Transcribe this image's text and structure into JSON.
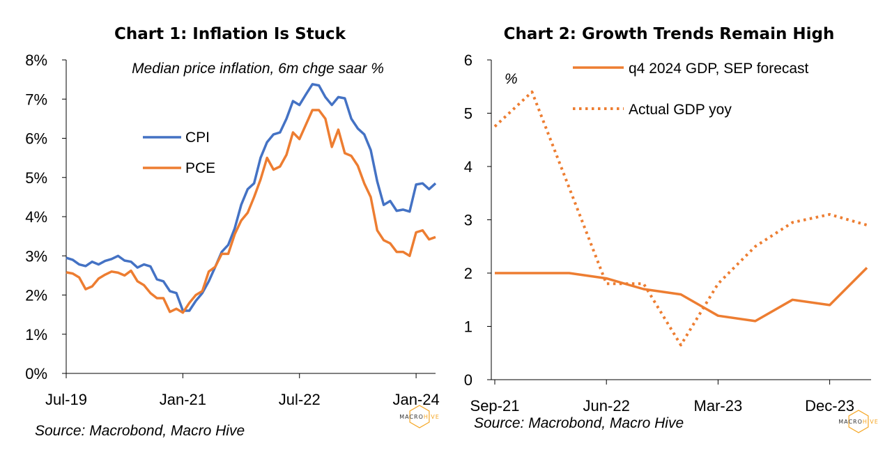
{
  "colors": {
    "cpi": "#4472C4",
    "orange": "#ED7D31",
    "axis": "#000000",
    "logo_dark": "#333333",
    "logo_accent": "#F5A623"
  },
  "logo": {
    "part1": "MACRO",
    "part2": "HIVE"
  },
  "chart_data": [
    {
      "type": "line",
      "title": "Chart 1: Inflation Is Stuck",
      "subtitle": "Median price inflation, 6m chge saar %",
      "source": "Source: Macrobond, Macro Hive",
      "x_tick_labels": [
        "Jul-19",
        "Jan-21",
        "Jul-22",
        "Jan-24"
      ],
      "x_tick_dates": [
        "2019-07",
        "2021-01",
        "2022-07",
        "2024-01"
      ],
      "y_tick_labels": [
        "0%",
        "1%",
        "2%",
        "3%",
        "4%",
        "5%",
        "6%",
        "7%",
        "8%"
      ],
      "ylim": [
        0,
        8
      ],
      "grid": false,
      "legend_position": "left, mid-height",
      "x": [
        "2019-07",
        "2019-08",
        "2019-09",
        "2019-10",
        "2019-11",
        "2019-12",
        "2020-01",
        "2020-02",
        "2020-03",
        "2020-04",
        "2020-05",
        "2020-06",
        "2020-07",
        "2020-08",
        "2020-09",
        "2020-10",
        "2020-11",
        "2020-12",
        "2021-01",
        "2021-02",
        "2021-03",
        "2021-04",
        "2021-05",
        "2021-06",
        "2021-07",
        "2021-08",
        "2021-09",
        "2021-10",
        "2021-11",
        "2021-12",
        "2022-01",
        "2022-02",
        "2022-03",
        "2022-04",
        "2022-05",
        "2022-06",
        "2022-07",
        "2022-08",
        "2022-09",
        "2022-10",
        "2022-11",
        "2022-12",
        "2023-01",
        "2023-02",
        "2023-03",
        "2023-04",
        "2023-05",
        "2023-06",
        "2023-07",
        "2023-08",
        "2023-09",
        "2023-10",
        "2023-11",
        "2023-12",
        "2024-01",
        "2024-02",
        "2024-03",
        "2024-04"
      ],
      "series": [
        {
          "name": "CPI",
          "color": "#4472C4",
          "values": [
            2.95,
            2.9,
            2.78,
            2.74,
            2.85,
            2.78,
            2.87,
            2.92,
            3.0,
            2.88,
            2.85,
            2.7,
            2.78,
            2.73,
            2.4,
            2.35,
            2.1,
            2.05,
            1.6,
            1.6,
            1.85,
            2.05,
            2.35,
            2.72,
            3.1,
            3.28,
            3.7,
            4.3,
            4.7,
            4.85,
            5.5,
            5.9,
            6.1,
            6.15,
            6.5,
            6.95,
            6.85,
            7.12,
            7.38,
            7.35,
            7.05,
            6.85,
            7.05,
            7.02,
            6.5,
            6.25,
            6.1,
            5.7,
            4.9,
            4.3,
            4.4,
            4.15,
            4.18,
            4.13,
            4.82,
            4.85,
            4.7,
            4.85
          ]
        },
        {
          "name": "PCE",
          "color": "#ED7D31",
          "values": [
            2.58,
            2.55,
            2.45,
            2.15,
            2.22,
            2.42,
            2.52,
            2.6,
            2.57,
            2.5,
            2.62,
            2.35,
            2.25,
            2.05,
            1.92,
            1.92,
            1.57,
            1.65,
            1.55,
            1.8,
            2.0,
            2.1,
            2.6,
            2.72,
            3.05,
            3.05,
            3.55,
            3.9,
            4.1,
            4.5,
            4.95,
            5.5,
            5.2,
            5.28,
            5.58,
            6.15,
            5.98,
            6.35,
            6.72,
            6.72,
            6.5,
            5.78,
            6.22,
            5.62,
            5.55,
            5.3,
            4.85,
            4.5,
            3.65,
            3.4,
            3.32,
            3.1,
            3.1,
            3.0,
            3.6,
            3.65,
            3.42,
            3.48
          ]
        }
      ]
    },
    {
      "type": "line",
      "title": "Chart 2: Growth Trends Remain High",
      "unit_label": "%",
      "source": "Source:  Macrobond, Macro Hive",
      "x_tick_labels": [
        "Sep-21",
        "Jun-22",
        "Mar-23",
        "Dec-23"
      ],
      "x_tick_quarters": [
        0,
        3,
        6,
        9
      ],
      "y_tick_labels": [
        "0",
        "1",
        "2",
        "3",
        "4",
        "5",
        "6"
      ],
      "ylim": [
        0,
        6
      ],
      "grid": false,
      "legend_position": "top-right",
      "x": [
        "Sep-21",
        "Dec-21",
        "Mar-22",
        "Jun-22",
        "Sep-22",
        "Dec-22",
        "Mar-23",
        "Jun-23",
        "Sep-23",
        "Dec-23",
        "Mar-24"
      ],
      "series": [
        {
          "name": "q4 2024  GDP, SEP forecast",
          "style": "solid",
          "color": "#ED7D31",
          "x_idx": [
            0,
            1,
            2,
            3,
            4,
            5,
            6,
            7,
            8,
            9,
            10
          ],
          "values": [
            2.0,
            2.0,
            2.0,
            1.9,
            1.7,
            1.6,
            1.2,
            1.1,
            1.5,
            1.4,
            2.1
          ]
        },
        {
          "name": "Actual GDP yoy",
          "style": "dotted",
          "color": "#ED7D31",
          "x_idx": [
            0,
            1,
            2,
            3,
            4,
            5,
            6,
            7,
            8,
            9,
            10
          ],
          "values": [
            4.75,
            5.4,
            3.6,
            1.8,
            1.8,
            0.65,
            1.8,
            2.5,
            2.95,
            3.1,
            2.9
          ]
        }
      ]
    }
  ]
}
